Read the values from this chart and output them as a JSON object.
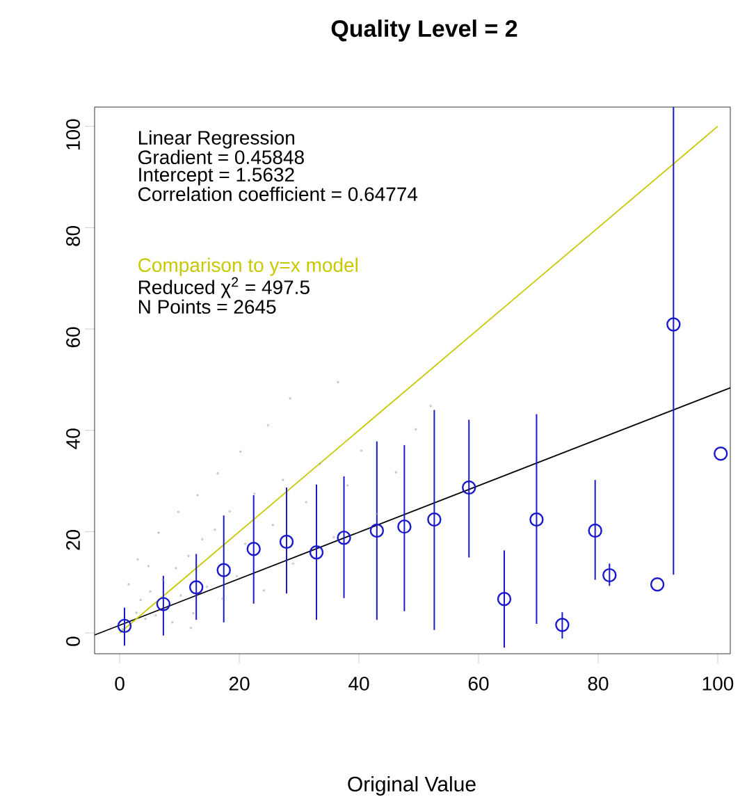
{
  "chart_data": {
    "type": "scatter",
    "title": "Quality Level =  2",
    "xlabel": "Original Value",
    "xlim": [
      -4.2,
      102.1
    ],
    "ylim": [
      -4.1,
      103.8
    ],
    "xticks": [
      0,
      20,
      40,
      60,
      80,
      100
    ],
    "yticks": [
      0,
      20,
      40,
      60,
      80,
      100
    ],
    "annotations": [
      "Gradient = 0.45848",
      "Intercept = 1.5632",
      "Correlation coefficient = 0.64774",
      "Reduced χ$^{2}$ =   497.5",
      "N Points =  2645"
    ],
    "series": [
      {
        "color": "#9a9a9a",
        "marker": "circle",
        "x": [
          0.5,
          1.2,
          2.0,
          2.8,
          3.5,
          4.3,
          5.1,
          6.0,
          7.2,
          8.1,
          9.4,
          10.2,
          11.5,
          12.3,
          13.8,
          14.6,
          15.9,
          17.2,
          18.4,
          19.6,
          21.0,
          22.5,
          24.1,
          25.6,
          27.3,
          29.0,
          31.2,
          33.5,
          35.8,
          38.1,
          40.4,
          43.0,
          46.2,
          49.5,
          3.0,
          6.5,
          9.8,
          13.0,
          16.4,
          20.2,
          24.8,
          28.5,
          1.5,
          4.8,
          8.8,
          11.9,
          36.5,
          52.0
        ],
        "values": [
          0.8,
          null,
          null,
          4.0,
          6.5,
          2.8,
          8.2,
          3.5,
          10.5,
          null,
          12.8,
          7.4,
          15.2,
          3.9,
          18.5,
          9.1,
          20.4,
          6.8,
          24.0,
          11.2,
          17.6,
          27.5,
          8.4,
          21.3,
          30.2,
          13.7,
          25.8,
          33.4,
          18.9,
          29.1,
          36.0,
          23.5,
          31.7,
          40.2,
          14.5,
          19.8,
          23.9,
          27.2,
          31.5,
          35.8,
          41.0,
          46.3,
          9.6,
          13.2,
          2.1,
          1.0,
          49.5,
          44.8
        ]
      },
      {
        "type": "line",
        "name": "Linear Regression",
        "color": "#000000",
        "x": [
          -4.2,
          102.1
        ],
        "values": [
          -0.4,
          48.4
        ]
      },
      {
        "type": "line",
        "name": "Comparison to y=x model",
        "color": "#c8c800",
        "x": [
          0,
          100
        ],
        "values": [
          0,
          100
        ]
      },
      {
        "color": "#1a1acc",
        "marker": "circle",
        "x": [
          0.8,
          7.3,
          12.8,
          17.4,
          22.4,
          27.9,
          32.9,
          37.5,
          43.0,
          47.6,
          52.6,
          58.4,
          64.3,
          69.7,
          74.0,
          79.5,
          81.9,
          89.9,
          92.6,
          100.5
        ],
        "values": [
          1.4,
          5.7,
          9.0,
          12.4,
          16.6,
          18.0,
          15.9,
          18.8,
          20.2,
          21.0,
          22.4,
          28.7,
          6.7,
          22.4,
          1.6,
          20.2,
          11.4,
          9.6,
          60.9,
          35.4
        ],
        "errors": [
          [
            -2.5,
            5.0
          ],
          [
            -0.5,
            11.3
          ],
          [
            2.6,
            15.6
          ],
          [
            2.1,
            23.2
          ],
          [
            5.8,
            27.2
          ],
          [
            7.8,
            28.7
          ],
          [
            2.6,
            29.3
          ],
          [
            6.9,
            30.9
          ],
          [
            2.6,
            37.8
          ],
          [
            4.3,
            37.1
          ],
          [
            0.6,
            44.0
          ],
          [
            14.9,
            42.1
          ],
          [
            -2.9,
            16.3
          ],
          [
            1.8,
            43.2
          ],
          [
            -1.1,
            4.1
          ],
          [
            10.5,
            30.2
          ],
          [
            9.3,
            13.7
          ],
          null,
          [
            11.5,
            103.8
          ],
          null
        ]
      }
    ]
  }
}
